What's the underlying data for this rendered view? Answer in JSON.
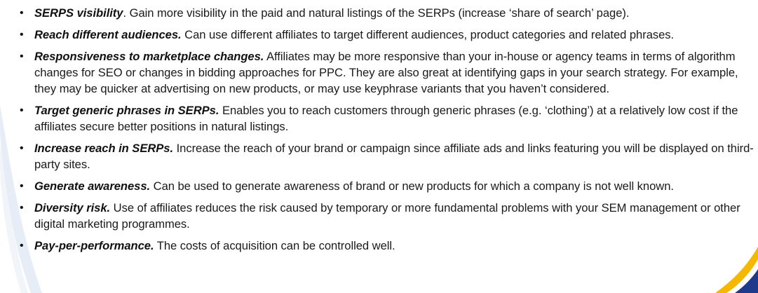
{
  "bullets": [
    {
      "term": "SERPS visibility",
      "sep": ".",
      "text": " Gain more visibility in the paid and natural listings of the SERPs (increase ‘share of search’ page)."
    },
    {
      "term": "Reach different audiences.",
      "sep": "",
      "text": " Can use different affiliates to target different audiences, product categories and related phrases."
    },
    {
      "term": "Responsiveness to marketplace changes.",
      "sep": "",
      "text": " Affiliates may be more responsive than your in-house or agency teams in terms of algorithm changes for SEO or changes in bidding approaches for PPC. They are also great at identifying gaps in your search strategy. For example, they may be quicker at advertising on new products, or may use keyphrase variants that you haven’t considered."
    },
    {
      "term": "Target generic phrases in SERPs.",
      "sep": "",
      "text": " Enables you to reach customers through generic phrases (e.g. ‘clothing’) at a relatively low cost if the affiliates secure better positions in natural listings."
    },
    {
      "term": "Increase reach in SERPs.",
      "sep": "",
      "text": " Increase the reach of your brand or campaign since affiliate ads and links featuring you will be displayed on third-party sites."
    },
    {
      "term": "Generate awareness.",
      "sep": "",
      "text": " Can be used to generate awareness of brand or new products for which a company is not well known."
    },
    {
      "term": "Diversity risk.",
      "sep": "",
      "text": " Use of affiliates reduces the risk caused by temporary or more fundamental problems with your SEM management or other digital marketing programmes."
    },
    {
      "term": "Pay-per-performance.",
      "sep": "",
      "text": " The costs of acquisition can be controlled well."
    }
  ],
  "bullet_glyph": "•",
  "colors": {
    "accent_blue": "#1f3a8a",
    "accent_yellow": "#f5b800",
    "left_swoosh": "#e4ebf5"
  }
}
